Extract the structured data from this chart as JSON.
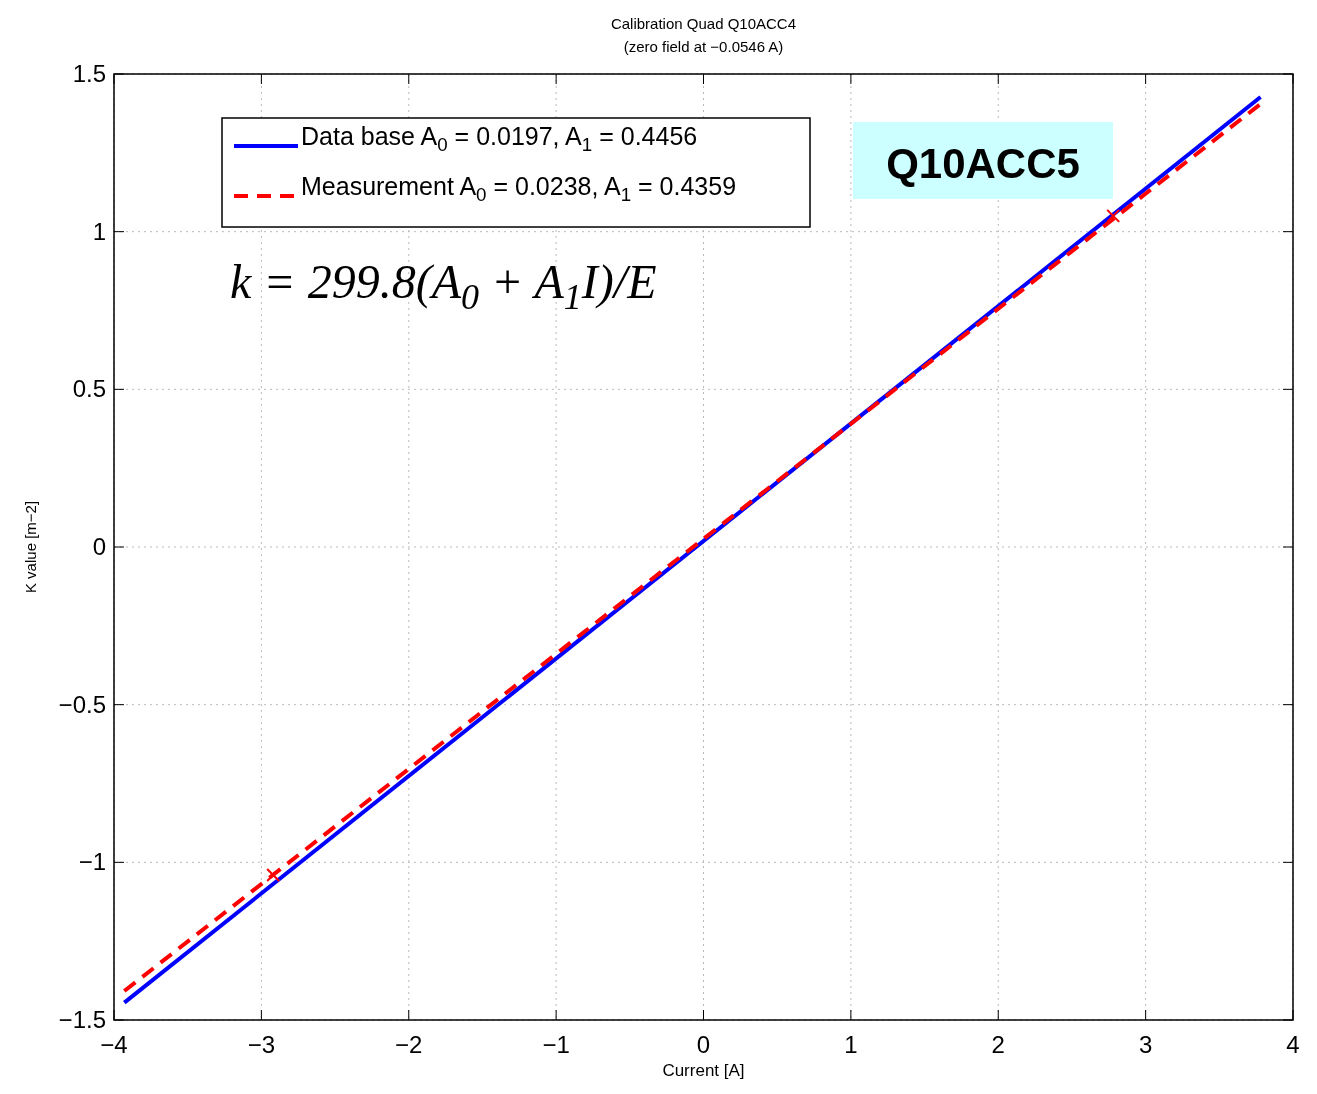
{
  "chart_data": {
    "type": "line",
    "title": "Calibration Quad Q10ACC4",
    "subtitle": "(zero field at −0.0546 A)",
    "xlabel": "Current [A]",
    "ylabel": "K value [m−2]",
    "xlim": [
      -4,
      4
    ],
    "xticks": [
      -4,
      -3,
      -2,
      -1,
      0,
      1,
      2,
      3,
      4
    ],
    "ylim": [
      -1.5,
      1.5
    ],
    "yticks": [
      -1.5,
      -1,
      -0.5,
      0,
      0.5,
      1,
      1.5
    ],
    "grid": true,
    "legend": "top left",
    "series": [
      {
        "name": "Data base A$_{0}$ = 0.0197, A$_{1}$ = 0.4456",
        "color": "#0000ff",
        "line_style": "solid",
        "x": [
          -3.93,
          3.78
        ],
        "values": [
          -1.445,
          1.427
        ]
      },
      {
        "name": "Measurement A$_{0}$ = 0.0238, A$_{1}$ = 0.4359",
        "color": "#ff0000",
        "line_style": "dashed",
        "x": [
          -3.93,
          3.78
        ],
        "values": [
          -1.408,
          1.405
        ]
      },
      {
        "type": "scatter",
        "color": "#ff0000",
        "marker": "cross",
        "x": [
          -2.92,
          2.78
        ],
        "values": [
          -1.04,
          1.05
        ]
      }
    ],
    "annotations": [
      "k = 299.8(A$_{0}$ + A$_{1}$I)/E",
      "Q10ACC5"
    ]
  }
}
